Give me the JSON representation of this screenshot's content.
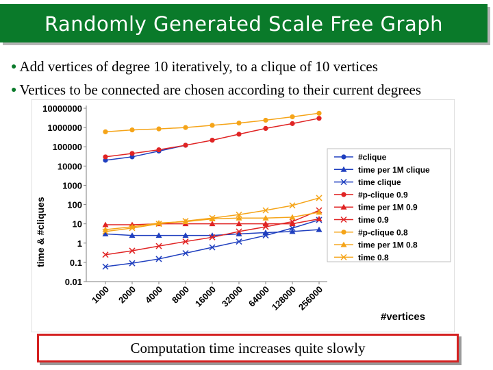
{
  "slide": {
    "title": "Randomly Generated Scale Free Graph",
    "bullets": [
      "Add vertices of degree 10 iteratively, to a clique of 10 vertices",
      "Vertices to be connected are chosen according to their current degrees"
    ],
    "caption": "Computation time increases quite slowly",
    "colors": {
      "title_band": "#0a7a2a",
      "caption_border": "#d42020",
      "series_blue": "#1f3fbf",
      "series_red": "#e02424",
      "series_orange": "#f5a418"
    }
  },
  "chart_data": {
    "type": "line",
    "y_scale": "log",
    "xlabel": "#vertices",
    "ylabel": "time & #cliques",
    "categories": [
      "1000",
      "2000",
      "4000",
      "8000",
      "16000",
      "32000",
      "64000",
      "128000",
      "256000"
    ],
    "y_ticks": [
      "10000000",
      "1000000",
      "100000",
      "10000",
      "1000",
      "100",
      "10",
      "1",
      "0.1",
      "0.01"
    ],
    "ylim": [
      0.01,
      10000000
    ],
    "grid": false,
    "legend_position": "right",
    "series": [
      {
        "name": "#clique",
        "color": "#1f3fbf",
        "marker": "circle",
        "values": [
          20000,
          30000,
          60000,
          120000,
          null,
          null,
          null,
          null,
          null
        ]
      },
      {
        "name": "time per 1M clique",
        "color": "#1f3fbf",
        "marker": "triangle",
        "values": [
          3,
          2.5,
          2.5,
          2.5,
          2.5,
          3,
          3.5,
          4,
          5
        ]
      },
      {
        "name": "time clique",
        "color": "#1f3fbf",
        "marker": "x",
        "values": [
          0.06,
          0.09,
          0.15,
          0.3,
          0.6,
          1.2,
          2.5,
          6,
          16
        ]
      },
      {
        "name": "#p-clique 0.9",
        "color": "#e02424",
        "marker": "circle",
        "values": [
          30000,
          45000,
          70000,
          120000,
          220000,
          450000,
          900000,
          1600000,
          3000000
        ]
      },
      {
        "name": "time per 1M 0.9",
        "color": "#e02424",
        "marker": "triangle",
        "values": [
          9,
          9,
          10,
          10,
          10,
          10,
          10,
          10,
          18
        ]
      },
      {
        "name": "time 0.9",
        "color": "#e02424",
        "marker": "x",
        "values": [
          0.25,
          0.4,
          0.7,
          1.2,
          2,
          4,
          7,
          13,
          50
        ]
      },
      {
        "name": "#p-clique 0.8",
        "color": "#f5a418",
        "marker": "circle",
        "values": [
          600000,
          750000,
          850000,
          1000000,
          1300000,
          1700000,
          2400000,
          3600000,
          5500000
        ]
      },
      {
        "name": "time per 1M 0.8",
        "color": "#f5a418",
        "marker": "triangle",
        "values": [
          5,
          7,
          11,
          13,
          18,
          20,
          20,
          22,
          40
        ]
      },
      {
        "name": "time 0.8",
        "color": "#f5a418",
        "marker": "x",
        "values": [
          4,
          6,
          10,
          14,
          20,
          30,
          50,
          90,
          220
        ]
      }
    ]
  }
}
